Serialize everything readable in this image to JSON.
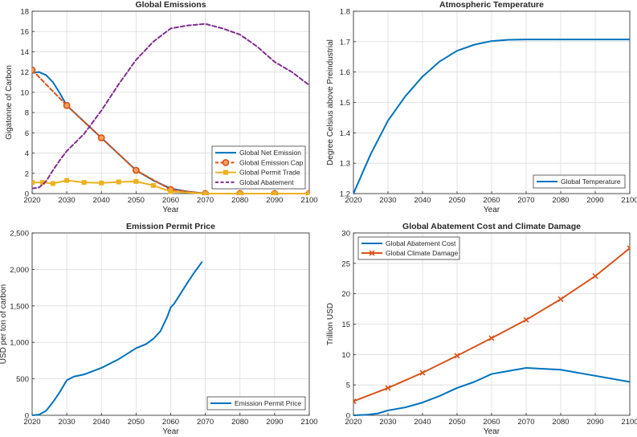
{
  "chart_data": [
    {
      "type": "line",
      "title": "Global Emissions",
      "xlabel": "Year",
      "ylabel": "Gigatonne of Carbon",
      "xlim": [
        2020,
        2100
      ],
      "ylim": [
        0,
        18
      ],
      "xticks": [
        2020,
        2030,
        2040,
        2050,
        2060,
        2070,
        2080,
        2090,
        2100
      ],
      "yticks": [
        0,
        2,
        4,
        6,
        8,
        10,
        12,
        14,
        16,
        18
      ],
      "ytick_labels": [
        "0",
        "2",
        "4",
        "6",
        "8",
        "10",
        "12",
        "14",
        "16",
        "18"
      ],
      "grid": true,
      "legend_position": "bottom-right",
      "series": [
        {
          "name": "Global Net Emission",
          "color": "#0072BD",
          "style": "solid",
          "marker": "none",
          "x": [
            2020,
            2022,
            2024,
            2026,
            2028,
            2030,
            2035,
            2040,
            2045,
            2050,
            2055,
            2060,
            2065,
            2070,
            2080,
            2090,
            2100
          ],
          "y": [
            11.9,
            12.0,
            11.7,
            11.0,
            9.9,
            8.7,
            7.1,
            5.5,
            3.9,
            2.3,
            1.3,
            0.5,
            0.2,
            0.0,
            0.0,
            0.0,
            0.0
          ]
        },
        {
          "name": "Global Emission Cap",
          "color": "#D95319",
          "style": "dashed",
          "marker": "circle",
          "x": [
            2020,
            2030,
            2040,
            2050,
            2060,
            2070,
            2080,
            2090,
            2100
          ],
          "y": [
            12.2,
            8.7,
            5.5,
            2.3,
            0.4,
            0.0,
            0.0,
            0.0,
            0.0
          ]
        },
        {
          "name": "Global Permit Trade",
          "color": "#EDB120",
          "style": "solid",
          "marker": "square",
          "x": [
            2020,
            2023,
            2026,
            2030,
            2035,
            2040,
            2045,
            2050,
            2055,
            2060,
            2070,
            2080,
            2090,
            2100
          ],
          "y": [
            1.1,
            1.1,
            1.0,
            1.3,
            1.1,
            1.05,
            1.15,
            1.2,
            0.8,
            0.2,
            0.0,
            0.0,
            0.0,
            0.0
          ]
        },
        {
          "name": "Global Abatement",
          "color": "#7E2F8E",
          "style": "dashed",
          "marker": "none",
          "x": [
            2020,
            2022,
            2024,
            2026,
            2028,
            2030,
            2035,
            2040,
            2045,
            2050,
            2055,
            2060,
            2065,
            2070,
            2075,
            2080,
            2085,
            2090,
            2095,
            2100
          ],
          "y": [
            0.5,
            0.6,
            1.2,
            2.3,
            3.3,
            4.2,
            5.9,
            8.2,
            10.8,
            13.2,
            15.0,
            16.3,
            16.6,
            16.75,
            16.3,
            15.7,
            14.5,
            13.0,
            12.0,
            10.7
          ]
        }
      ]
    },
    {
      "type": "line",
      "title": "Atmospheric Temperature",
      "xlabel": "Year",
      "ylabel": "Degree Celsius above Preindustrial",
      "xlim": [
        2020,
        2100
      ],
      "ylim": [
        1.2,
        1.8
      ],
      "xticks": [
        2020,
        2030,
        2040,
        2050,
        2060,
        2070,
        2080,
        2090,
        2100
      ],
      "yticks": [
        1.2,
        1.3,
        1.4,
        1.5,
        1.6,
        1.7,
        1.8
      ],
      "ytick_labels": [
        "1.2",
        "1.3",
        "1.4",
        "1.5",
        "1.6",
        "1.7",
        "1.8"
      ],
      "grid": true,
      "legend_position": "bottom-right",
      "series": [
        {
          "name": "Global Temperature",
          "color": "#0072BD",
          "style": "solid",
          "marker": "none",
          "x": [
            2020,
            2025,
            2030,
            2035,
            2040,
            2045,
            2050,
            2055,
            2060,
            2065,
            2070,
            2080,
            2090,
            2100
          ],
          "y": [
            1.2,
            1.33,
            1.44,
            1.52,
            1.585,
            1.635,
            1.67,
            1.69,
            1.702,
            1.706,
            1.707,
            1.707,
            1.707,
            1.707
          ]
        }
      ]
    },
    {
      "type": "line",
      "title": "Emission Permit Price",
      "xlabel": "Year",
      "ylabel": "USD per ton of carbon",
      "xlim": [
        2020,
        2100
      ],
      "ylim": [
        0,
        2500
      ],
      "xticks": [
        2020,
        2030,
        2040,
        2050,
        2060,
        2070,
        2080,
        2090,
        2100
      ],
      "yticks": [
        0,
        500,
        1000,
        1500,
        2000,
        2500
      ],
      "ytick_labels": [
        "0",
        "500",
        "1,000",
        "1,500",
        "2,000",
        "2,500"
      ],
      "grid": true,
      "legend_position": "bottom-right",
      "series": [
        {
          "name": "Emission Permit Price",
          "color": "#0072BD",
          "style": "solid",
          "marker": "none",
          "x": [
            2020,
            2022,
            2024,
            2026,
            2028,
            2030,
            2032,
            2035,
            2040,
            2045,
            2050,
            2053,
            2055,
            2057,
            2059,
            2060,
            2061,
            2063,
            2065,
            2067,
            2069
          ],
          "y": [
            0,
            10,
            60,
            180,
            320,
            480,
            530,
            560,
            650,
            770,
            920,
            980,
            1050,
            1150,
            1350,
            1480,
            1530,
            1680,
            1830,
            1970,
            2100
          ]
        }
      ]
    },
    {
      "type": "line",
      "title": "Global Abatement Cost and Climate Damage",
      "xlabel": "Year",
      "ylabel": "Trillion USD",
      "xlim": [
        2020,
        2100
      ],
      "ylim": [
        0,
        30
      ],
      "xticks": [
        2020,
        2030,
        2040,
        2050,
        2060,
        2070,
        2080,
        2090,
        2100
      ],
      "yticks": [
        0,
        5,
        10,
        15,
        20,
        25,
        30
      ],
      "ytick_labels": [
        "0",
        "5",
        "10",
        "15",
        "20",
        "25",
        "30"
      ],
      "grid": true,
      "legend_position": "top-left",
      "series": [
        {
          "name": "Global Abatement Cost",
          "color": "#0072BD",
          "style": "solid",
          "marker": "none",
          "x": [
            2020,
            2024,
            2027,
            2030,
            2035,
            2040,
            2045,
            2050,
            2055,
            2060,
            2065,
            2070,
            2080,
            2090,
            2100
          ],
          "y": [
            0.0,
            0.1,
            0.3,
            0.8,
            1.3,
            2.1,
            3.2,
            4.5,
            5.5,
            6.8,
            7.3,
            7.8,
            7.5,
            6.5,
            5.5
          ]
        },
        {
          "name": "Global Climate Damage",
          "color": "#D95319",
          "style": "solid",
          "marker": "x",
          "x": [
            2020,
            2030,
            2040,
            2050,
            2060,
            2070,
            2080,
            2090,
            2100
          ],
          "y": [
            2.3,
            4.5,
            7.0,
            9.8,
            12.7,
            15.7,
            19.1,
            22.9,
            27.5
          ]
        }
      ]
    }
  ]
}
